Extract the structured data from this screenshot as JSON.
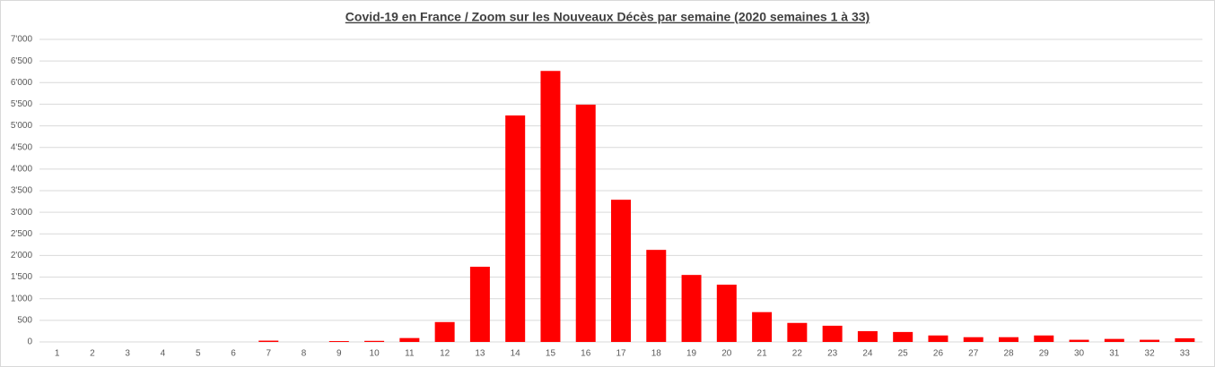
{
  "chart_data": {
    "type": "bar",
    "title": "Covid-19 en France / Zoom  sur les Nouveaux Décès par semaine (2020 semaines 1 à 33)",
    "categories": [
      "1",
      "2",
      "3",
      "4",
      "5",
      "6",
      "7",
      "8",
      "9",
      "10",
      "11",
      "12",
      "13",
      "14",
      "15",
      "16",
      "17",
      "18",
      "19",
      "20",
      "21",
      "22",
      "23",
      "24",
      "25",
      "26",
      "27",
      "28",
      "29",
      "30",
      "31",
      "32",
      "33"
    ],
    "values": [
      0,
      0,
      0,
      0,
      0,
      0,
      30,
      0,
      20,
      25,
      90,
      460,
      1740,
      5240,
      6270,
      5490,
      3290,
      2130,
      1550,
      1325,
      690,
      440,
      375,
      250,
      230,
      150,
      110,
      110,
      150,
      50,
      70,
      50,
      85
    ],
    "color": "#ff0000",
    "ylim": [
      0,
      7000
    ],
    "yticks": [
      0,
      500,
      {
        "value": 1000,
        "label": "1'000"
      },
      {
        "value": 1500,
        "label": "1'500"
      },
      {
        "value": 2000,
        "label": "2'000"
      },
      {
        "value": 2500,
        "label": "2'500"
      },
      {
        "value": 3000,
        "label": "3'000"
      },
      {
        "value": 3500,
        "label": "3'500"
      },
      {
        "value": 4000,
        "label": "4'000"
      },
      {
        "value": 4500,
        "label": "4'500"
      },
      {
        "value": 5000,
        "label": "5'000"
      },
      {
        "value": 5500,
        "label": "5'500"
      },
      {
        "value": 6000,
        "label": "6'000"
      },
      {
        "value": 6500,
        "label": "6'500"
      },
      {
        "value": 7000,
        "label": "7'000"
      }
    ],
    "grid": true
  }
}
